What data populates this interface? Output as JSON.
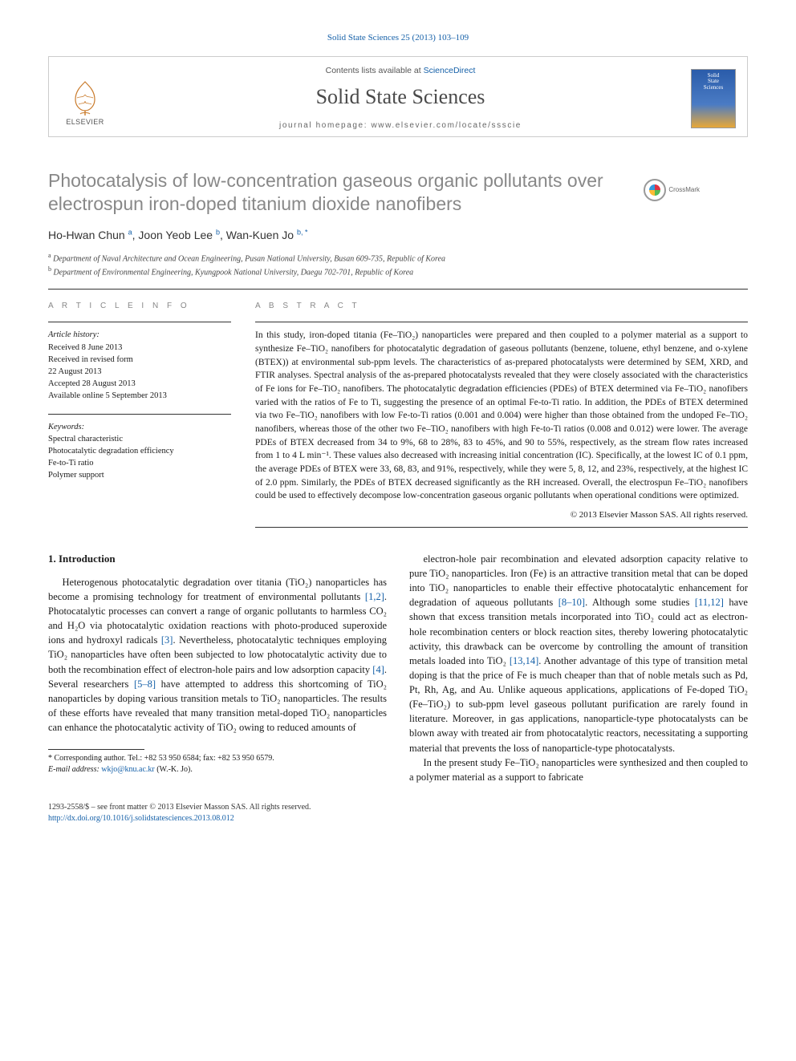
{
  "citation": "Solid State Sciences 25 (2013) 103–109",
  "header": {
    "contents_prefix": "Contents lists available at ",
    "contents_link": "ScienceDirect",
    "journal": "Solid State Sciences",
    "homepage_prefix": "journal homepage: ",
    "homepage": "www.elsevier.com/locate/ssscie",
    "publisher": "ELSEVIER",
    "cover_line1": "Solid",
    "cover_line2": "State",
    "cover_line3": "Sciences"
  },
  "crossmark": "CrossMark",
  "title": "Photocatalysis of low-concentration gaseous organic pollutants over electrospun iron-doped titanium dioxide nanofibers",
  "authors_html": "Ho-Hwan Chun <sup>a</sup>, Joon Yeob Lee <sup>b</sup>, Wan-Kuen Jo <sup>b, *</sup>",
  "affiliations": {
    "a": "Department of Naval Architecture and Ocean Engineering, Pusan National University, Busan 609-735, Republic of Korea",
    "b": "Department of Environmental Engineering, Kyungpook National University, Daegu 702-701, Republic of Korea"
  },
  "article_info": {
    "head": "A R T I C L E   I N F O",
    "history_label": "Article history:",
    "received": "Received 8 June 2013",
    "revised1": "Received in revised form",
    "revised2": "22 August 2013",
    "accepted": "Accepted 28 August 2013",
    "online": "Available online 5 September 2013",
    "keywords_label": "Keywords:",
    "kw1": "Spectral characteristic",
    "kw2": "Photocatalytic degradation efficiency",
    "kw3": "Fe-to-Ti ratio",
    "kw4": "Polymer support"
  },
  "abstract": {
    "head": "A B S T R A C T",
    "text": "In this study, iron-doped titania (Fe–TiO₂) nanoparticles were prepared and then coupled to a polymer material as a support to synthesize Fe–TiO₂ nanofibers for photocatalytic degradation of gaseous pollutants (benzene, toluene, ethyl benzene, and o-xylene (BTEX)) at environmental sub-ppm levels. The characteristics of as-prepared photocatalysts were determined by SEM, XRD, and FTIR analyses. Spectral analysis of the as-prepared photocatalysts revealed that they were closely associated with the characteristics of Fe ions for Fe–TiO₂ nanofibers. The photocatalytic degradation efficiencies (PDEs) of BTEX determined via Fe–TiO₂ nanofibers varied with the ratios of Fe to Ti, suggesting the presence of an optimal Fe-to-Ti ratio. In addition, the PDEs of BTEX determined via two Fe–TiO₂ nanofibers with low Fe-to-Ti ratios (0.001 and 0.004) were higher than those obtained from the undoped Fe–TiO₂ nanofibers, whereas those of the other two Fe–TiO₂ nanofibers with high Fe-to-Ti ratios (0.008 and 0.012) were lower. The average PDEs of BTEX decreased from 34 to 9%, 68 to 28%, 83 to 45%, and 90 to 55%, respectively, as the stream flow rates increased from 1 to 4 L min⁻¹. These values also decreased with increasing initial concentration (IC). Specifically, at the lowest IC of 0.1 ppm, the average PDEs of BTEX were 33, 68, 83, and 91%, respectively, while they were 5, 8, 12, and 23%, respectively, at the highest IC of 2.0 ppm. Similarly, the PDEs of BTEX decreased significantly as the RH increased. Overall, the electrospun Fe–TiO₂ nanofibers could be used to effectively decompose low-concentration gaseous organic pollutants when operational conditions were optimized.",
    "copyright": "© 2013 Elsevier Masson SAS. All rights reserved."
  },
  "section1_head": "1. Introduction",
  "para1": "Heterogenous photocatalytic degradation over titania (TiO₂) nanoparticles has become a promising technology for treatment of environmental pollutants [1,2]. Photocatalytic processes can convert a range of organic pollutants to harmless CO₂ and H₂O via photocatalytic oxidation reactions with photo-produced superoxide ions and hydroxyl radicals [3]. Nevertheless, photocatalytic techniques employing TiO₂ nanoparticles have often been subjected to low photocatalytic activity due to both the recombination effect of electron-hole pairs and low adsorption capacity [4]. Several researchers [5–8] have attempted to address this shortcoming of TiO₂ nanoparticles by doping various transition metals to TiO₂ nanoparticles. The results of these efforts have revealed that many transition metal-doped TiO₂ nanoparticles can enhance the photocatalytic activity of TiO₂ owing to reduced amounts of",
  "para2": "electron-hole pair recombination and elevated adsorption capacity relative to pure TiO₂ nanoparticles. Iron (Fe) is an attractive transition metal that can be doped into TiO₂ nanoparticles to enable their effective photocatalytic enhancement for degradation of aqueous pollutants [8–10]. Although some studies [11,12] have shown that excess transition metals incorporated into TiO₂ could act as electron-hole recombination centers or block reaction sites, thereby lowering photocatalytic activity, this drawback can be overcome by controlling the amount of transition metals loaded into TiO₂ [13,14]. Another advantage of this type of transition metal doping is that the price of Fe is much cheaper than that of noble metals such as Pd, Pt, Rh, Ag, and Au. Unlike aqueous applications, applications of Fe-doped TiO₂ (Fe–TiO₂) to sub-ppm level gaseous pollutant purification are rarely found in literature. Moreover, in gas applications, nanoparticle-type photocatalysts can be blown away with treated air from photocatalytic reactors, necessitating a supporting material that prevents the loss of nanoparticle-type photocatalysts.",
  "para3": "In the present study Fe–TiO₂ nanoparticles were synthesized and then coupled to a polymer material as a support to fabricate",
  "footnote": {
    "corresp": "* Corresponding author. Tel.: +82 53 950 6584; fax: +82 53 950 6579.",
    "email_label": "E-mail address: ",
    "email": "wkjo@knu.ac.kr",
    "email_suffix": " (W.-K. Jo)."
  },
  "footer": {
    "issn": "1293-2558/$ – see front matter © 2013 Elsevier Masson SAS. All rights reserved.",
    "doi": "http://dx.doi.org/10.1016/j.solidstatesciences.2013.08.012"
  },
  "refs": {
    "r12": "[1,2]",
    "r3": "[3]",
    "r4": "[4]",
    "r58": "[5–8]",
    "r810": "[8–10]",
    "r1112": "[11,12]",
    "r1314": "[13,14]"
  },
  "colors": {
    "link": "#1560a8",
    "title_gray": "#888888",
    "text": "#1a1a1a"
  }
}
